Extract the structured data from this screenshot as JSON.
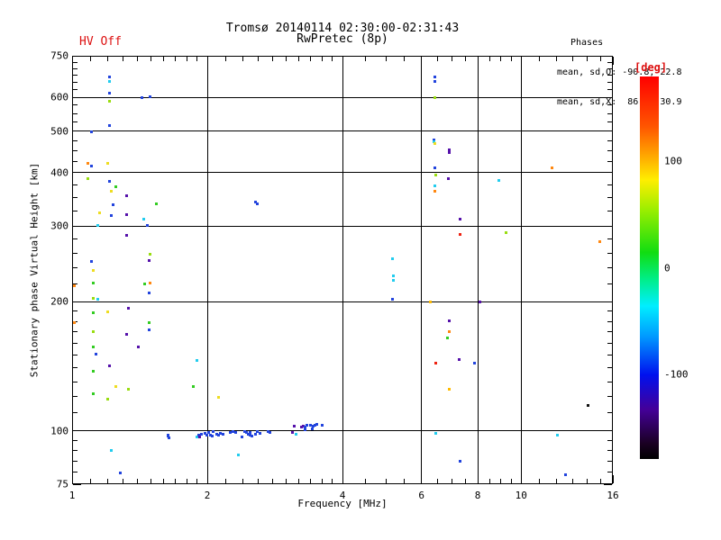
{
  "header": {
    "hv_status": "HV Off",
    "title_line1": "Tromsø 20140114 02:30:00-02:31:43",
    "title_line2": "RwPretec (8p)",
    "phases_title": "Phases",
    "phases_o": "mean, sd,O: -90.8, 22.8",
    "phases_x": "mean, sd,X:  86.4, 30.9"
  },
  "colors": {
    "background": "#ffffff",
    "axis": "#000000",
    "hv_status_color": "#dd1111",
    "deg_label_color": "#dd1111"
  },
  "colorbar": {
    "label": "[deg]",
    "range_deg": [
      180,
      -180
    ],
    "ticks": [
      100,
      0,
      -100
    ],
    "gradient_stops": [
      [
        "0%",
        "#ff0000"
      ],
      [
        "13%",
        "#ff5500"
      ],
      [
        "21%",
        "#ffaa00"
      ],
      [
        "27%",
        "#ffee00"
      ],
      [
        "35%",
        "#99ee00"
      ],
      [
        "46%",
        "#11dd11"
      ],
      [
        "53%",
        "#00ee88"
      ],
      [
        "60%",
        "#00eeff"
      ],
      [
        "68%",
        "#0099ff"
      ],
      [
        "78%",
        "#0011ee"
      ],
      [
        "87%",
        "#440099"
      ],
      [
        "96%",
        "#1a0022"
      ],
      [
        "100%",
        "#000000"
      ]
    ]
  },
  "chart_data": {
    "type": "scatter",
    "title": "Tromsø 20140114 02:30:00-02:31:43  RwPretec (8p)",
    "xlabel": "Frequency [MHz]",
    "ylabel": "Stationary phase Virtual Height [km]",
    "x_scale": "log",
    "y_scale": "log",
    "xlim": [
      1,
      16
    ],
    "ylim": [
      75,
      750
    ],
    "x_major_ticks": [
      1,
      2,
      4,
      6,
      8,
      10,
      16
    ],
    "x_grid": [
      2,
      4,
      6,
      8,
      10
    ],
    "x_minor_ticks": [
      1.1,
      1.2,
      1.3,
      1.4,
      1.5,
      1.6,
      1.7,
      1.8,
      1.9,
      2.2,
      2.4,
      2.6,
      2.8,
      3,
      3.2,
      3.4,
      3.6,
      3.8,
      4.5,
      5,
      5.5,
      6.5,
      7,
      7.5,
      8.5,
      9,
      9.5,
      11,
      12,
      13,
      14,
      15
    ],
    "y_major_ticks": [
      75,
      100,
      200,
      300,
      400,
      500,
      600,
      750
    ],
    "y_grid": [
      100,
      200,
      300,
      400,
      500,
      600
    ],
    "y_minor_ticks": [
      80,
      85,
      90,
      95,
      110,
      120,
      130,
      140,
      150,
      160,
      170,
      180,
      190,
      220,
      240,
      260,
      280,
      325,
      350,
      375,
      425,
      450,
      475,
      525,
      550,
      575,
      625,
      650,
      675,
      700,
      725
    ],
    "point_legend": "each point = [frequency_MHz, virtual_height_km, phase_color_hex]",
    "points": [
      [
        1.21,
        671,
        "#2244dd"
      ],
      [
        1.21,
        655,
        "#22ccee"
      ],
      [
        1.21,
        615,
        "#2244dd"
      ],
      [
        1.49,
        603,
        "#2244dd"
      ],
      [
        1.43,
        601,
        "#2244dd"
      ],
      [
        1.21,
        589,
        "#99dd11"
      ],
      [
        1.21,
        517,
        "#2244dd"
      ],
      [
        1.1,
        500,
        "#2244dd"
      ],
      [
        1.08,
        422,
        "#ff8811"
      ],
      [
        1.1,
        416,
        "#2244dd"
      ],
      [
        1.2,
        422,
        "#eedd22"
      ],
      [
        1.08,
        389,
        "#99dd11"
      ],
      [
        1.21,
        383,
        "#2244dd"
      ],
      [
        1.25,
        372,
        "#33cc22"
      ],
      [
        1.22,
        363,
        "#eedd22"
      ],
      [
        1.32,
        354,
        "#5511aa"
      ],
      [
        1.54,
        340,
        "#33cc22"
      ],
      [
        1.23,
        338,
        "#2244dd"
      ],
      [
        1.15,
        323,
        "#eedd22"
      ],
      [
        1.22,
        318,
        "#2244dd"
      ],
      [
        1.32,
        320,
        "#5511aa"
      ],
      [
        1.44,
        312,
        "#22ccee"
      ],
      [
        1.47,
        302,
        "#2244dd"
      ],
      [
        1.14,
        302,
        "#22ccee"
      ],
      [
        1.32,
        286,
        "#5511aa"
      ],
      [
        1.49,
        259,
        "#99dd11"
      ],
      [
        1.1,
        249,
        "#2244dd"
      ],
      [
        1.48,
        250,
        "#5511aa"
      ],
      [
        1.11,
        237,
        "#eedd22"
      ],
      [
        1.01,
        218,
        "#ff8811"
      ],
      [
        1.11,
        222,
        "#33cc22"
      ],
      [
        1.45,
        221,
        "#33cc22"
      ],
      [
        1.49,
        222,
        "#ff8811"
      ],
      [
        1.48,
        210,
        "#2244dd"
      ],
      [
        1.11,
        204,
        "#99dd11"
      ],
      [
        1.14,
        203,
        "#22ccee"
      ],
      [
        1.11,
        189,
        "#33cc22"
      ],
      [
        1.2,
        190,
        "#eedd22"
      ],
      [
        1.33,
        194,
        "#5511aa"
      ],
      [
        1.01,
        179,
        "#ff8811"
      ],
      [
        1.48,
        179,
        "#33cc22"
      ],
      [
        1.11,
        171,
        "#99dd11"
      ],
      [
        1.48,
        172,
        "#2244dd"
      ],
      [
        1.32,
        168,
        "#5511aa"
      ],
      [
        1.4,
        157,
        "#5511aa"
      ],
      [
        1.11,
        157,
        "#33cc22"
      ],
      [
        1.13,
        151,
        "#2244dd"
      ],
      [
        1.89,
        146,
        "#22ccee"
      ],
      [
        1.21,
        142,
        "#5511aa"
      ],
      [
        1.11,
        138,
        "#33cc22"
      ],
      [
        1.25,
        127,
        "#eedd22"
      ],
      [
        1.33,
        125,
        "#99dd11"
      ],
      [
        1.86,
        127,
        "#33cc22"
      ],
      [
        1.11,
        122,
        "#33cc22"
      ],
      [
        1.2,
        119,
        "#99dd11"
      ],
      [
        2.11,
        120,
        "#eedd22"
      ],
      [
        1.22,
        90,
        "#22ccee"
      ],
      [
        1.28,
        80,
        "#2244dd"
      ],
      [
        1.63,
        98,
        "#2244dd"
      ],
      [
        1.63,
        97.5,
        "#2244dd"
      ],
      [
        1.64,
        96.5,
        "#2244dd"
      ],
      [
        1.89,
        97,
        "#22ccee"
      ],
      [
        1.91,
        98,
        "#2244dd"
      ],
      [
        1.92,
        97,
        "#5511aa"
      ],
      [
        1.94,
        98.5,
        "#2244dd"
      ],
      [
        1.97,
        99,
        "#2244dd"
      ],
      [
        1.99,
        98,
        "#2244dd"
      ],
      [
        2.01,
        99.5,
        "#2244dd"
      ],
      [
        2.03,
        98,
        "#2244dd"
      ],
      [
        2.05,
        97.5,
        "#2244dd"
      ],
      [
        2.06,
        100,
        "#2244dd"
      ],
      [
        2.09,
        98.5,
        "#2244dd"
      ],
      [
        2.11,
        98,
        "#2244dd"
      ],
      [
        2.13,
        99,
        "#2244dd"
      ],
      [
        2.16,
        98.5,
        "#2244dd"
      ],
      [
        2.25,
        99.5,
        "#2244dd"
      ],
      [
        2.28,
        100,
        "#2244dd"
      ],
      [
        2.31,
        99.5,
        "#2244dd"
      ],
      [
        2.34,
        88,
        "#22ccee"
      ],
      [
        2.38,
        97,
        "#2244dd"
      ],
      [
        2.42,
        100,
        "#2244dd"
      ],
      [
        2.44,
        99.5,
        "#2244dd"
      ],
      [
        2.46,
        98.5,
        "#2244dd"
      ],
      [
        2.48,
        99.5,
        "#2244dd"
      ],
      [
        2.49,
        98,
        "#2244dd"
      ],
      [
        2.51,
        97.5,
        "#2244dd"
      ],
      [
        2.55,
        98.5,
        "#2244dd"
      ],
      [
        2.58,
        100,
        "#2244dd"
      ],
      [
        2.61,
        99,
        "#2244dd"
      ],
      [
        2.72,
        100,
        "#2244dd"
      ],
      [
        2.75,
        99.5,
        "#2244dd"
      ],
      [
        3.09,
        99.5,
        "#5511aa"
      ],
      [
        3.12,
        102.5,
        "#5511aa"
      ],
      [
        3.14,
        98.5,
        "#22ccee"
      ],
      [
        3.24,
        102,
        "#5511aa"
      ],
      [
        3.27,
        102.5,
        "#5511aa"
      ],
      [
        3.3,
        102,
        "#2244dd"
      ],
      [
        3.33,
        103,
        "#2244dd"
      ],
      [
        3.39,
        103,
        "#2244dd"
      ],
      [
        3.42,
        101,
        "#2244dd"
      ],
      [
        3.44,
        102.5,
        "#2244dd"
      ],
      [
        3.3,
        100.5,
        "#2244dd"
      ],
      [
        3.47,
        103,
        "#2244dd"
      ],
      [
        3.5,
        103.5,
        "#2244dd"
      ],
      [
        3.6,
        103,
        "#2244dd"
      ],
      [
        2.55,
        343,
        "#2244dd"
      ],
      [
        2.58,
        340,
        "#2244dd"
      ],
      [
        5.15,
        252,
        "#22ccee"
      ],
      [
        5.17,
        230,
        "#22ccee"
      ],
      [
        5.17,
        225,
        "#22ccee"
      ],
      [
        5.15,
        203,
        "#2244dd"
      ],
      [
        6.41,
        671,
        "#2244dd"
      ],
      [
        6.41,
        655,
        "#2244dd"
      ],
      [
        6.41,
        601,
        "#99dd11"
      ],
      [
        6.38,
        478,
        "#2244dd"
      ],
      [
        6.38,
        474,
        "#22ccee"
      ],
      [
        6.41,
        469,
        "#eedd22"
      ],
      [
        6.9,
        454,
        "#5511aa"
      ],
      [
        6.9,
        448,
        "#5511aa"
      ],
      [
        6.41,
        412,
        "#2244dd"
      ],
      [
        6.44,
        397,
        "#99dd11"
      ],
      [
        6.87,
        389,
        "#5511aa"
      ],
      [
        8.89,
        385,
        "#22ccee"
      ],
      [
        6.41,
        374,
        "#22ccee"
      ],
      [
        6.41,
        363,
        "#ff8811"
      ],
      [
        7.29,
        312,
        "#5511aa"
      ],
      [
        7.29,
        288,
        "#ee2211"
      ],
      [
        6.26,
        200,
        "#ffbb00"
      ],
      [
        8.06,
        200,
        "#5511aa"
      ],
      [
        6.9,
        181,
        "#5511aa"
      ],
      [
        6.9,
        171,
        "#ff8811"
      ],
      [
        6.84,
        165,
        "#33cc22"
      ],
      [
        7.26,
        147,
        "#5511aa"
      ],
      [
        6.44,
        144,
        "#ee2211"
      ],
      [
        7.84,
        144,
        "#2244dd"
      ],
      [
        6.9,
        125,
        "#ffbb00"
      ],
      [
        6.44,
        99,
        "#22ccee"
      ],
      [
        7.29,
        85,
        "#2244dd"
      ],
      [
        9.22,
        291,
        "#99dd11"
      ],
      [
        14.93,
        277,
        "#ff8811"
      ],
      [
        11.7,
        412,
        "#ff8811"
      ],
      [
        14.07,
        115,
        "#111111"
      ],
      [
        12.03,
        98,
        "#22ccee"
      ],
      [
        12.54,
        79,
        "#2244dd"
      ]
    ]
  }
}
